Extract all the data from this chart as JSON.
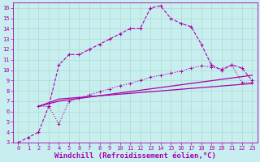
{
  "bg_color": "#c8eef0",
  "line_color": "#aa00aa",
  "grid_color": "#aaddcc",
  "xlabel": "Windchill (Refroidissement éolien,°C)",
  "xlabel_fontsize": 6.5,
  "xlim": [
    -0.5,
    23.5
  ],
  "ylim": [
    3,
    16.5
  ],
  "xticks": [
    0,
    1,
    2,
    3,
    4,
    5,
    6,
    7,
    8,
    9,
    10,
    11,
    12,
    13,
    14,
    15,
    16,
    17,
    18,
    19,
    20,
    21,
    22,
    23
  ],
  "yticks": [
    3,
    4,
    5,
    6,
    7,
    8,
    9,
    10,
    11,
    12,
    13,
    14,
    15,
    16
  ],
  "curve1_x": [
    0,
    1,
    2,
    3,
    4,
    5,
    6,
    7,
    8,
    9,
    10,
    11,
    12,
    13,
    14,
    15,
    16,
    17,
    18,
    19,
    20,
    21,
    22,
    23
  ],
  "curve1_y": [
    3.0,
    3.5,
    4.0,
    6.5,
    10.5,
    11.5,
    11.5,
    12.0,
    12.5,
    13.0,
    13.5,
    14.0,
    14.0,
    16.0,
    16.2,
    15.0,
    14.5,
    14.2,
    12.5,
    10.5,
    10.0,
    10.5,
    10.2,
    9.0
  ],
  "curve2_x": [
    2,
    3,
    4,
    5,
    6,
    7,
    8,
    9,
    10,
    11,
    12,
    13,
    14,
    15,
    16,
    17,
    18,
    19,
    20,
    21,
    22,
    23
  ],
  "curve2_y": [
    6.5,
    6.5,
    4.8,
    7.0,
    7.3,
    7.6,
    7.9,
    8.2,
    8.5,
    8.7,
    9.0,
    9.3,
    9.5,
    9.7,
    9.9,
    10.2,
    10.4,
    10.3,
    10.1,
    10.5,
    8.8,
    8.8
  ],
  "line1_x": [
    2,
    4,
    23
  ],
  "line1_y": [
    6.5,
    7.0,
    9.5
  ],
  "line2_x": [
    2,
    4,
    23
  ],
  "line2_y": [
    6.5,
    7.2,
    8.7
  ]
}
